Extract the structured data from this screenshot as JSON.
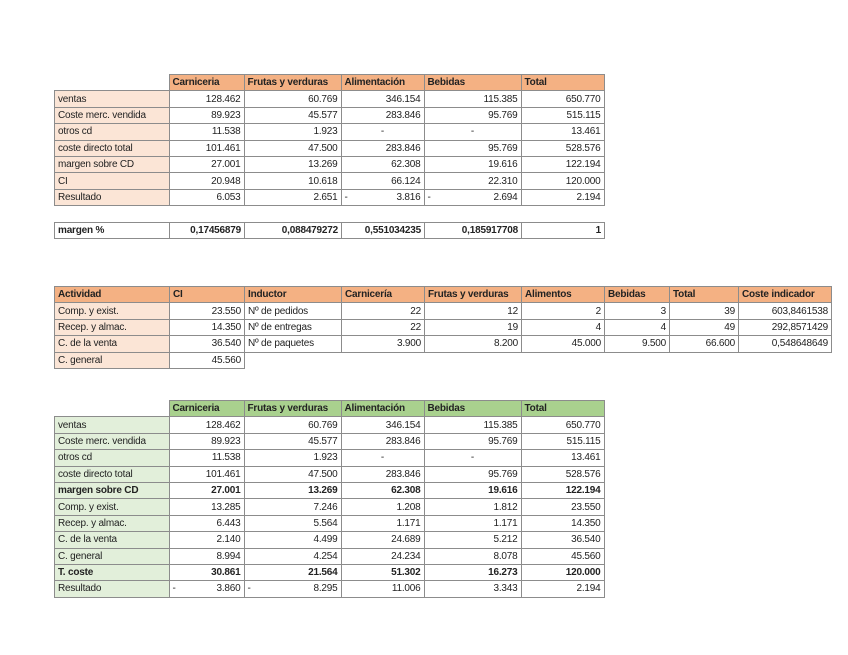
{
  "colors": {
    "orange_header": "#f4b183",
    "orange_label": "#fbe5d6",
    "green_header": "#a9d18e",
    "green_label": "#e2efda"
  },
  "table1": {
    "headers": [
      "",
      "Carniceria",
      "Frutas y verduras",
      "Alimentación",
      "Bebidas",
      "Total"
    ],
    "rows": [
      [
        "ventas",
        "128.462",
        "60.769",
        "346.154",
        "115.385",
        "650.770"
      ],
      [
        "Coste merc. vendida",
        "89.923",
        "45.577",
        "283.846",
        "95.769",
        "515.115"
      ],
      [
        "otros cd",
        "11.538",
        "1.923",
        "-",
        "-",
        "13.461"
      ],
      [
        "coste directo total",
        "101.461",
        "47.500",
        "283.846",
        "95.769",
        "528.576"
      ],
      [
        "margen sobre CD",
        "27.001",
        "13.269",
        "62.308",
        "19.616",
        "122.194"
      ],
      [
        "CI",
        "20.948",
        "10.618",
        "66.124",
        "22.310",
        "120.000"
      ],
      [
        "Resultado",
        "6.053",
        "2.651",
        "- 3.816",
        "- 2.694",
        "2.194"
      ]
    ],
    "margin_row": [
      "margen %",
      "0,17456879",
      "0,088479272",
      "0,551034235",
      "0,185917708",
      "1"
    ]
  },
  "table2": {
    "headers": [
      "Actividad",
      "CI",
      "Inductor",
      "Carnicería",
      "Frutas y verduras",
      "Alimentos",
      "Bebidas",
      "Total",
      "Coste indicador"
    ],
    "rows": [
      [
        "Comp. y exist.",
        "23.550",
        "Nº de pedidos",
        "22",
        "12",
        "2",
        "3",
        "39",
        "603,8461538"
      ],
      [
        "Recep. y almac.",
        "14.350",
        "Nº de entregas",
        "22",
        "19",
        "4",
        "4",
        "49",
        "292,8571429"
      ],
      [
        "C. de la venta",
        "36.540",
        "Nº de paquetes",
        "3.900",
        "8.200",
        "45.000",
        "9.500",
        "66.600",
        "0,548648649"
      ],
      [
        "C. general",
        "45.560"
      ]
    ]
  },
  "table3": {
    "headers": [
      "",
      "Carniceria",
      "Frutas y verduras",
      "Alimentación",
      "Bebidas",
      "Total"
    ],
    "rows": [
      [
        "ventas",
        "128.462",
        "60.769",
        "346.154",
        "115.385",
        "650.770"
      ],
      [
        "Coste merc. vendida",
        "89.923",
        "45.577",
        "283.846",
        "95.769",
        "515.115"
      ],
      [
        "otros cd",
        "11.538",
        "1.923",
        "-",
        "-",
        "13.461"
      ],
      [
        "coste directo total",
        "101.461",
        "47.500",
        "283.846",
        "95.769",
        "528.576"
      ],
      [
        "margen sobre CD",
        "27.001",
        "13.269",
        "62.308",
        "19.616",
        "122.194"
      ],
      [
        "Comp. y exist.",
        "13.285",
        "7.246",
        "1.208",
        "1.812",
        "23.550"
      ],
      [
        "Recep. y almac.",
        "6.443",
        "5.564",
        "1.171",
        "1.171",
        "14.350"
      ],
      [
        "C. de la venta",
        "2.140",
        "4.499",
        "24.689",
        "5.212",
        "36.540"
      ],
      [
        "C. general",
        "8.994",
        "4.254",
        "24.234",
        "8.078",
        "45.560"
      ],
      [
        "T. coste",
        "30.861",
        "21.564",
        "51.302",
        "16.273",
        "120.000"
      ],
      [
        "Resultado",
        "- 3.860",
        "- 8.295",
        "11.006",
        "3.343",
        "2.194"
      ]
    ],
    "bold_rows": [
      4,
      9
    ]
  }
}
